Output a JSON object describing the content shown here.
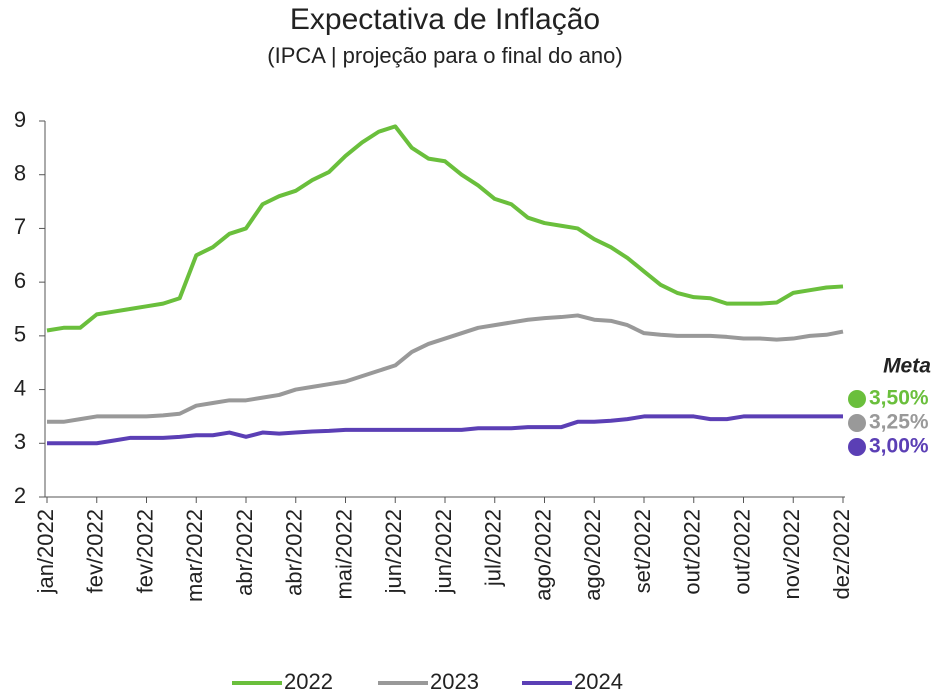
{
  "chart_data": {
    "type": "line",
    "title": "Expectativa de Inflação",
    "subtitle": "(IPCA | projeção para o final do ano)",
    "categories": [
      "jan/2022",
      null,
      null,
      "fev/2022",
      null,
      null,
      "fev/2022",
      null,
      null,
      "mar/2022",
      null,
      null,
      "abr/2022",
      null,
      null,
      "abr/2022",
      null,
      null,
      "mai/2022",
      null,
      null,
      "jun/2022",
      null,
      null,
      "jun/2022",
      null,
      null,
      "jul/2022",
      null,
      null,
      "ago/2022",
      null,
      null,
      "ago/2022",
      null,
      null,
      "set/2022",
      null,
      null,
      "out/2022",
      null,
      null,
      "out/2022",
      null,
      null,
      "nov/2022",
      null,
      null,
      "dez/2022"
    ],
    "series": [
      {
        "name": "2022",
        "color": "#6abf3c",
        "values": [
          5.1,
          5.15,
          5.15,
          5.4,
          5.45,
          5.5,
          5.55,
          5.6,
          5.7,
          6.5,
          6.65,
          6.9,
          7.0,
          7.45,
          7.6,
          7.7,
          7.9,
          8.05,
          8.35,
          8.6,
          8.8,
          8.9,
          8.5,
          8.3,
          8.25,
          8.0,
          7.8,
          7.55,
          7.45,
          7.2,
          7.1,
          7.05,
          7.0,
          6.8,
          6.65,
          6.45,
          6.2,
          5.95,
          5.8,
          5.72,
          5.7,
          5.6,
          5.6,
          5.6,
          5.62,
          5.8,
          5.85,
          5.9,
          5.92
        ]
      },
      {
        "name": "2023",
        "color": "#999999",
        "values": [
          3.4,
          3.4,
          3.45,
          3.5,
          3.5,
          3.5,
          3.5,
          3.52,
          3.55,
          3.7,
          3.75,
          3.8,
          3.8,
          3.85,
          3.9,
          4.0,
          4.05,
          4.1,
          4.15,
          4.25,
          4.35,
          4.45,
          4.7,
          4.85,
          4.95,
          5.05,
          5.15,
          5.2,
          5.25,
          5.3,
          5.33,
          5.35,
          5.38,
          5.3,
          5.28,
          5.2,
          5.05,
          5.02,
          5.0,
          5.0,
          5.0,
          4.98,
          4.95,
          4.95,
          4.93,
          4.95,
          5.0,
          5.02,
          5.08
        ]
      },
      {
        "name": "2024",
        "color": "#5b3fb5",
        "values": [
          3.0,
          3.0,
          3.0,
          3.0,
          3.05,
          3.1,
          3.1,
          3.1,
          3.12,
          3.15,
          3.15,
          3.2,
          3.12,
          3.2,
          3.18,
          3.2,
          3.22,
          3.23,
          3.25,
          3.25,
          3.25,
          3.25,
          3.25,
          3.25,
          3.25,
          3.25,
          3.28,
          3.28,
          3.28,
          3.3,
          3.3,
          3.3,
          3.4,
          3.4,
          3.42,
          3.45,
          3.5,
          3.5,
          3.5,
          3.5,
          3.45,
          3.45,
          3.5,
          3.5,
          3.5,
          3.5,
          3.5,
          3.5,
          3.5
        ]
      }
    ],
    "ylim": [
      2,
      9
    ],
    "yticks": [
      2,
      3,
      4,
      5,
      6,
      7,
      8,
      9
    ],
    "meta": {
      "title": "Meta",
      "items": [
        {
          "label": "3,50%",
          "color": "#6abf3c"
        },
        {
          "label": "3,25%",
          "color": "#999999"
        },
        {
          "label": "3,00%",
          "color": "#5b3fb5"
        }
      ]
    }
  }
}
